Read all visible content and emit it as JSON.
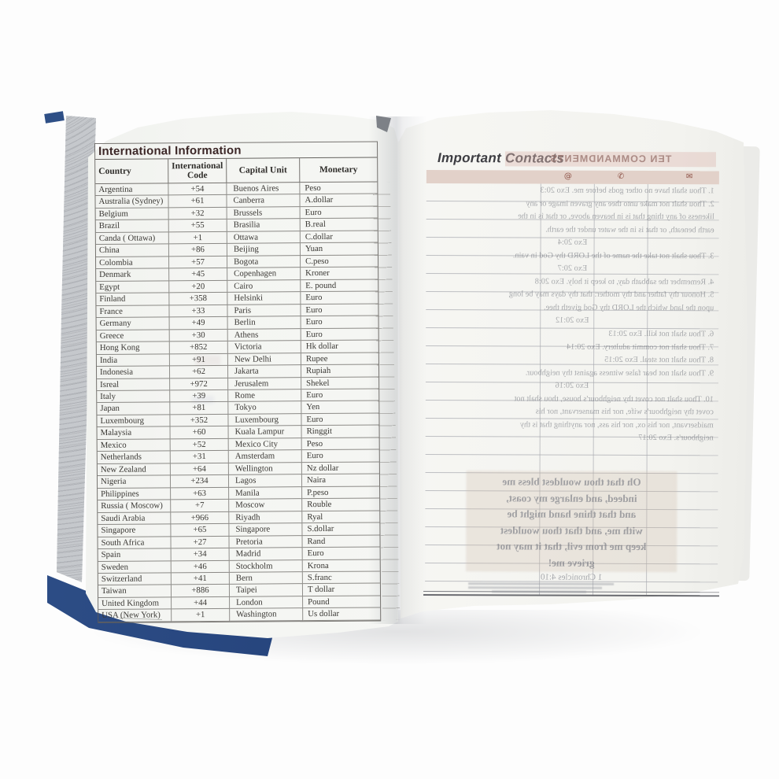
{
  "left_page": {
    "title": "International Information",
    "table": {
      "headers": [
        "Country",
        "International Code",
        "Capital Unit",
        "Monetary"
      ],
      "rows": [
        {
          "country": "Argentina",
          "code": "+54",
          "capital": "Buenos Aires",
          "monetary": "Peso"
        },
        {
          "country": "Australia (Sydney)",
          "code": "+61",
          "capital": "Canberra",
          "monetary": "A.dollar"
        },
        {
          "country": "Belgium",
          "code": "+32",
          "capital": "Brussels",
          "monetary": "Euro"
        },
        {
          "country": "Brazil",
          "code": "+55",
          "capital": "Brasilia",
          "monetary": "B.real"
        },
        {
          "country": "Canda ( Ottawa)",
          "code": "+1",
          "capital": "Ottawa",
          "monetary": "C.dollar"
        },
        {
          "country": "China",
          "code": "+86",
          "capital": "Beijing",
          "monetary": "Yuan"
        },
        {
          "country": "Colombia",
          "code": "+57",
          "capital": "Bogota",
          "monetary": "C.peso"
        },
        {
          "country": "Denmark",
          "code": "+45",
          "capital": "Copenhagen",
          "monetary": "Kroner"
        },
        {
          "country": "Egypt",
          "code": "+20",
          "capital": "Cairo",
          "monetary": "E. pound"
        },
        {
          "country": "Finland",
          "code": "+358",
          "capital": "Helsinki",
          "monetary": "Euro"
        },
        {
          "country": "France",
          "code": "+33",
          "capital": "Paris",
          "monetary": "Euro"
        },
        {
          "country": "Germany",
          "code": "+49",
          "capital": "Berlin",
          "monetary": "Euro"
        },
        {
          "country": "Greece",
          "code": "+30",
          "capital": "Athens",
          "monetary": "Euro"
        },
        {
          "country": "Hong Kong",
          "code": "+852",
          "capital": "Victoria",
          "monetary": "Hk dollar"
        },
        {
          "country": "India",
          "code": "+91",
          "capital": "New Delhi",
          "monetary": "Rupee"
        },
        {
          "country": "Indonesia",
          "code": "+62",
          "capital": "Jakarta",
          "monetary": "Rupiah"
        },
        {
          "country": "Isreal",
          "code": "+972",
          "capital": "Jerusalem",
          "monetary": "Shekel"
        },
        {
          "country": "Italy",
          "code": "+39",
          "capital": "Rome",
          "monetary": "Euro"
        },
        {
          "country": "Japan",
          "code": "+81",
          "capital": "Tokyo",
          "monetary": "Yen"
        },
        {
          "country": "Luxembourg",
          "code": "+352",
          "capital": "Luxembourg",
          "monetary": "Euro"
        },
        {
          "country": "Malaysia",
          "code": "+60",
          "capital": "Kuala Lampur",
          "monetary": "Ringgit"
        },
        {
          "country": "Mexico",
          "code": "+52",
          "capital": "Mexico City",
          "monetary": "Peso"
        },
        {
          "country": "Netherlands",
          "code": "+31",
          "capital": "Amsterdam",
          "monetary": "Euro"
        },
        {
          "country": "New Zealand",
          "code": "+64",
          "capital": "Wellington",
          "monetary": "Nz dollar"
        },
        {
          "country": "Nigeria",
          "code": "+234",
          "capital": "Lagos",
          "monetary": "Naira"
        },
        {
          "country": "Philippines",
          "code": "+63",
          "capital": "Manila",
          "monetary": "P.peso"
        },
        {
          "country": "Russia ( Moscow)",
          "code": "+7",
          "capital": "Moscow",
          "monetary": "Rouble"
        },
        {
          "country": "Saudi Arabia",
          "code": "+966",
          "capital": "Riyadh",
          "monetary": "Ryal"
        },
        {
          "country": "Singapore",
          "code": "+65",
          "capital": "Singapore",
          "monetary": "S.dollar"
        },
        {
          "country": "South Africa",
          "code": "+27",
          "capital": "Pretoria",
          "monetary": "Rand"
        },
        {
          "country": "Spain",
          "code": "+34",
          "capital": "Madrid",
          "monetary": "Euro"
        },
        {
          "country": "Sweden",
          "code": "+46",
          "capital": "Stockholm",
          "monetary": "Krona"
        },
        {
          "country": "Switzerland",
          "code": "+41",
          "capital": "Bern",
          "monetary": "S.franc"
        },
        {
          "country": "Taiwan",
          "code": "+886",
          "capital": "Taipei",
          "monetary": "T dollar"
        },
        {
          "country": "United Kingdom",
          "code": "+44",
          "capital": "London",
          "monetary": "Pound"
        },
        {
          "country": "USA (New York)",
          "code": "+1",
          "capital": "Washington",
          "monetary": "Us dollar"
        }
      ]
    }
  },
  "right_page": {
    "title": "Important Contacts",
    "band_color": "#e2d1c9",
    "ruled_line_count": 22,
    "header_icons": [
      {
        "name": "at-icon",
        "glyph": "@"
      },
      {
        "name": "phone-icon",
        "glyph": "✆"
      },
      {
        "name": "envelope-icon",
        "glyph": "✉"
      }
    ],
    "bleedthrough": {
      "heading": "TEN COMMANDMENTS",
      "lines": [
        "1. Thou shalt have no other gods before me. Exo 20:3",
        "2. Thou shalt not make unto thee any graven image or any",
        "likeness of any thing that is in heaven above, or that is in the",
        "earth beneath, or that is in the water under the earth.",
        "Exo 20:4",
        "3. Thou shalt not take the name of the LORD thy God in vain.",
        "Exo 20:7",
        "4. Remember the sabbath day, to keep it holy. Exo 20:8",
        "5. Honour thy father and thy mother: that thy days may be long",
        "upon the land which the LORD thy God giveth thee.",
        "Exo 20:12",
        "6. Thou shalt not kill. Exo 20:13",
        "7. Thou shalt not commit adultery. Exo 20:14",
        "8. Thou shalt not steal. Exo 20:15",
        "9. Thou shalt not bear false witness against thy neighbour.",
        "Exo 20:16",
        "10. Thou shalt not covet thy neighbour's house, thou shalt not",
        "covet thy neighbour's wife, nor his manservant, nor his",
        "maidservant, nor his ox, nor his ass, nor anything that is thy",
        "neighbour's. Exo 20:17"
      ],
      "prayer_lines": [
        "Oh that thou wouldest bless me",
        "indeed, and enlarge my coast,",
        "and that thine hand might be",
        "with me, and that thou wouldest",
        "keep me from evil, that it may not",
        "grieve me!"
      ],
      "reference": "1 Chronicles 4:10"
    }
  }
}
